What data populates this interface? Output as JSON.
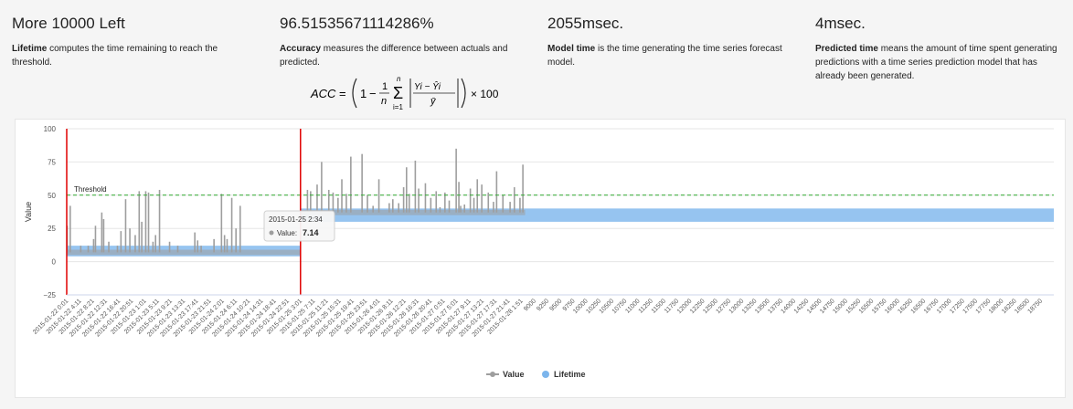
{
  "stats": [
    {
      "value": "More 10000 Left",
      "term": "Lifetime",
      "desc": " computes the time remaining to reach the threshold."
    },
    {
      "value": "96.51535671114286%",
      "term": "Accuracy",
      "desc": " measures the difference between actuals and predicted."
    },
    {
      "value": "2055msec.",
      "term": "Model time",
      "desc": " is the time generating the time series forecast model."
    },
    {
      "value": "4msec.",
      "term": "Predicted time",
      "desc": " means the amount of time spent generating predictions with a time series prediction model that has already been generated."
    }
  ],
  "formula": {
    "lhs": "ACC",
    "equals": "=",
    "one": "1",
    "minus": "−",
    "frac_num": "1",
    "frac_den": "n",
    "sum_top": "n",
    "sum_bottom": "i=1",
    "inner_num": "Yi − Ŷi",
    "inner_den": "ȳ",
    "times": "× 100"
  },
  "chart_data": {
    "type": "line",
    "ylabel": "Value",
    "ylim": [
      -25,
      100
    ],
    "yticks": [
      "100",
      "75",
      "50",
      "25",
      "0",
      "−25"
    ],
    "threshold": {
      "label": "Threshold",
      "value": 50,
      "color": "#33aa33"
    },
    "grid": true,
    "legend": {
      "placement": "bottom",
      "items": [
        {
          "name": "Value",
          "color": "#9e9e9e"
        },
        {
          "name": "Lifetime",
          "color": "#7cb5ec"
        }
      ]
    },
    "x_date_labels": [
      "2015-01-22 0:01",
      "2015-01-22 4:11",
      "2015-01-22 8:21",
      "2015-01-22 12:31",
      "2015-01-22 16:41",
      "2015-01-22 20:51",
      "2015-01-23 1:01",
      "2015-01-23 5:11",
      "2015-01-23 9:21",
      "2015-01-23 13:31",
      "2015-01-23 17:41",
      "2015-01-23 21:51",
      "2015-01-24 2:01",
      "2015-01-24 6:11",
      "2015-01-24 10:21",
      "2015-01-24 14:31",
      "2015-01-24 18:41",
      "2015-01-24 22:51",
      "2015-01-25 3:01",
      "2015-01-25 7:11",
      "2015-01-25 11:21",
      "2015-01-25 15:31",
      "2015-01-25 19:41",
      "2015-01-25 23:51",
      "2015-01-26 4:01",
      "2015-01-26 8:11",
      "2015-01-26 12:21",
      "2015-01-26 16:31",
      "2015-01-26 20:41",
      "2015-01-27 0:51",
      "2015-01-27 5:01",
      "2015-01-27 9:11",
      "2015-01-27 13:21",
      "2015-01-27 17:31",
      "2015-01-27 21:41",
      "2015-01-28 1:51"
    ],
    "x_num_labels": [
      "9000",
      "9250",
      "9500",
      "9750",
      "10000",
      "10250",
      "10500",
      "10750",
      "11000",
      "11250",
      "11500",
      "11750",
      "12000",
      "12250",
      "12500",
      "12750",
      "13000",
      "13250",
      "13500",
      "13750",
      "14000",
      "14250",
      "14500",
      "14750",
      "15000",
      "15250",
      "15500",
      "15750",
      "16000",
      "16250",
      "16500",
      "16750",
      "17000",
      "17250",
      "17500",
      "17750",
      "18000",
      "18250",
      "18500",
      "18750"
    ],
    "value_series": {
      "name": "Value",
      "segment1": {
        "baseline": 7,
        "spikes": [
          [
            0.2,
            27
          ],
          [
            1.5,
            42
          ],
          [
            6.0,
            12
          ],
          [
            9.2,
            12
          ],
          [
            11.5,
            17
          ],
          [
            12.3,
            27
          ],
          [
            15.0,
            37
          ],
          [
            15.8,
            32
          ],
          [
            18.0,
            15
          ],
          [
            21.7,
            12
          ],
          [
            23.2,
            23
          ],
          [
            25.2,
            47
          ],
          [
            27.0,
            25
          ],
          [
            29.3,
            20
          ],
          [
            31.0,
            53
          ],
          [
            32.1,
            30
          ],
          [
            33.8,
            53
          ],
          [
            35.0,
            52
          ],
          [
            36.9,
            15
          ],
          [
            38.0,
            20
          ],
          [
            39.7,
            54
          ],
          [
            44.0,
            15
          ],
          [
            47.5,
            12
          ],
          [
            54.8,
            22
          ],
          [
            56.0,
            16
          ],
          [
            57.5,
            12
          ],
          [
            63.0,
            17
          ],
          [
            66.2,
            51
          ],
          [
            67.5,
            20
          ],
          [
            68.6,
            17
          ],
          [
            70.6,
            48
          ],
          [
            72.4,
            25
          ],
          [
            74.2,
            42
          ]
        ]
      },
      "segment2": {
        "baseline": 37,
        "spikes": [
          [
            3.1,
            54
          ],
          [
            4.5,
            53
          ],
          [
            7.4,
            58
          ],
          [
            9.4,
            75
          ],
          [
            12.6,
            54
          ],
          [
            14.5,
            52
          ],
          [
            16.7,
            48
          ],
          [
            18.4,
            62
          ],
          [
            20.4,
            51
          ],
          [
            22.4,
            79
          ],
          [
            27.4,
            81
          ],
          [
            29.8,
            50
          ],
          [
            32.3,
            42
          ],
          [
            34.9,
            62
          ],
          [
            39.5,
            44
          ],
          [
            41.1,
            47
          ],
          [
            43.7,
            44
          ],
          [
            45.9,
            56
          ],
          [
            47.2,
            71
          ],
          [
            48.4,
            51
          ],
          [
            51.1,
            76
          ],
          [
            52.6,
            55
          ],
          [
            55.6,
            59
          ],
          [
            58.0,
            48
          ],
          [
            60.4,
            53
          ],
          [
            62.1,
            41
          ],
          [
            64.3,
            52
          ],
          [
            66.2,
            46
          ],
          [
            69.3,
            85
          ],
          [
            70.5,
            60
          ],
          [
            71.3,
            42
          ],
          [
            73.0,
            43
          ],
          [
            75.6,
            55
          ],
          [
            77.2,
            48
          ],
          [
            78.7,
            62
          ],
          [
            80.7,
            58
          ],
          [
            83.6,
            52
          ],
          [
            85.9,
            45
          ],
          [
            87.3,
            68
          ],
          [
            90.1,
            50
          ],
          [
            93.3,
            45
          ],
          [
            95.2,
            56
          ],
          [
            97.7,
            48
          ],
          [
            99.0,
            73
          ]
        ]
      }
    },
    "lifetime_series": {
      "name": "Lifetime",
      "segment1": {
        "from": "2015-01-22 0:01",
        "to": "2015-01-25 3:01",
        "low": 4,
        "high": 12
      },
      "segment2": {
        "from": "2015-01-25 3:01",
        "to": "18750",
        "low": 30,
        "high": 40
      }
    },
    "markers": [
      {
        "at": "2015-01-22 0:01",
        "color": "#e00000"
      },
      {
        "at": "2015-01-25 3:01",
        "color": "#e00000"
      }
    ],
    "tooltip": {
      "title": "2015-01-25 2:34",
      "label": "Value:",
      "value": "7.14"
    }
  }
}
